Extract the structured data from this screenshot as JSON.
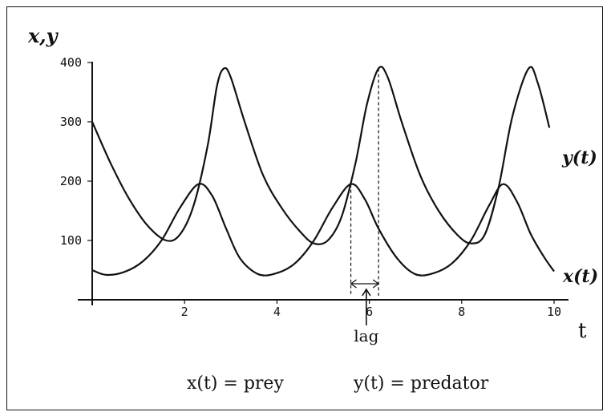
{
  "chart_data": {
    "type": "line",
    "ylabel": "x,y",
    "xlabel": "t",
    "xlim": [
      0,
      10
    ],
    "ylim": [
      0,
      400
    ],
    "xticks": [
      "2",
      "4",
      "6",
      "8",
      "10"
    ],
    "yticks": [
      "100",
      "200",
      "300",
      "400"
    ],
    "grid": false,
    "series": [
      {
        "name": "y(t)",
        "points": [
          [
            0,
            300
          ],
          [
            0.4,
            230
          ],
          [
            0.8,
            170
          ],
          [
            1.2,
            125
          ],
          [
            1.6,
            100
          ],
          [
            1.9,
            110
          ],
          [
            2.2,
            160
          ],
          [
            2.5,
            260
          ],
          [
            2.7,
            360
          ],
          [
            2.85,
            390
          ],
          [
            3.0,
            375
          ],
          [
            3.3,
            300
          ],
          [
            3.7,
            210
          ],
          [
            4.1,
            155
          ],
          [
            4.5,
            115
          ],
          [
            4.8,
            95
          ],
          [
            5.1,
            100
          ],
          [
            5.4,
            140
          ],
          [
            5.7,
            230
          ],
          [
            5.95,
            330
          ],
          [
            6.2,
            390
          ],
          [
            6.4,
            375
          ],
          [
            6.7,
            300
          ],
          [
            7.1,
            210
          ],
          [
            7.5,
            150
          ],
          [
            7.9,
            110
          ],
          [
            8.2,
            95
          ],
          [
            8.5,
            110
          ],
          [
            8.8,
            190
          ],
          [
            9.1,
            310
          ],
          [
            9.45,
            390
          ],
          [
            9.65,
            365
          ],
          [
            9.9,
            290
          ]
        ]
      },
      {
        "name": "x(t)",
        "points": [
          [
            0,
            50
          ],
          [
            0.3,
            42
          ],
          [
            0.7,
            47
          ],
          [
            1.1,
            65
          ],
          [
            1.5,
            100
          ],
          [
            1.9,
            155
          ],
          [
            2.3,
            195
          ],
          [
            2.6,
            175
          ],
          [
            2.9,
            120
          ],
          [
            3.2,
            70
          ],
          [
            3.6,
            43
          ],
          [
            4.0,
            45
          ],
          [
            4.4,
            62
          ],
          [
            4.8,
            100
          ],
          [
            5.2,
            155
          ],
          [
            5.6,
            195
          ],
          [
            5.9,
            170
          ],
          [
            6.2,
            120
          ],
          [
            6.6,
            70
          ],
          [
            7.0,
            43
          ],
          [
            7.4,
            45
          ],
          [
            7.8,
            62
          ],
          [
            8.2,
            100
          ],
          [
            8.6,
            160
          ],
          [
            8.9,
            195
          ],
          [
            9.2,
            165
          ],
          [
            9.5,
            110
          ],
          [
            9.8,
            70
          ],
          [
            10.0,
            48
          ]
        ]
      }
    ],
    "annotations": {
      "lag_label": "lag",
      "lag_interval": [
        5.6,
        6.2
      ],
      "series_label_y": "y(t)",
      "series_label_x": "x(t)",
      "caption_x": "x(t) = prey",
      "caption_y": "y(t) = predator"
    }
  }
}
